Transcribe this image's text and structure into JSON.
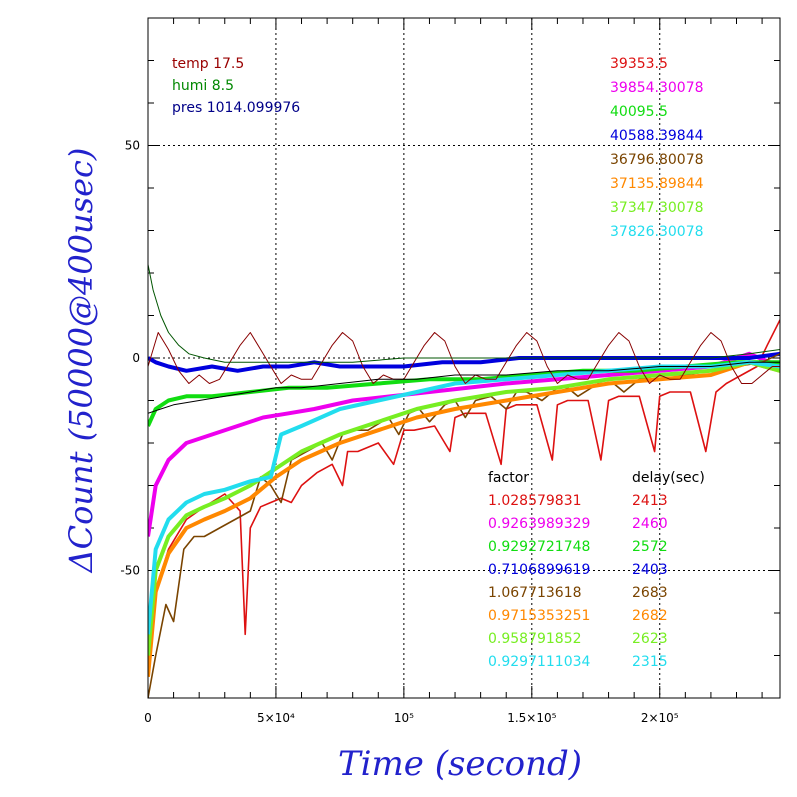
{
  "chart_data": {
    "type": "line",
    "xlabel": "Time (second)",
    "ylabel": "ΔCount (50000@400usec)",
    "xlim": [
      0,
      247000
    ],
    "ylim": [
      -80,
      80
    ],
    "x_ticks": [
      {
        "value": 0,
        "label": "0"
      },
      {
        "value": 50000,
        "label": "5×10⁴"
      },
      {
        "value": 100000,
        "label": "10⁵"
      },
      {
        "value": 150000,
        "label": "1.5×10⁵"
      },
      {
        "value": 200000,
        "label": "2×10⁵"
      }
    ],
    "y_ticks": [
      {
        "value": 50,
        "label": "50"
      },
      {
        "value": 0,
        "label": "0"
      },
      {
        "value": -50,
        "label": "-50"
      }
    ],
    "grid": true,
    "env_labels": [
      {
        "text": "temp 17.5",
        "color": "#990000"
      },
      {
        "text": "humi 8.5",
        "color": "#008800"
      },
      {
        "text": "pres 1014.099976",
        "color": "#000088"
      }
    ],
    "channel_labels": [
      {
        "text": "39353.5",
        "color": "#dd1111"
      },
      {
        "text": "39854.30078",
        "color": "#ee00ee"
      },
      {
        "text": "40095.5",
        "color": "#11dd11"
      },
      {
        "text": "40588.39844",
        "color": "#0000dd"
      },
      {
        "text": "36796.80078",
        "color": "#7a4400"
      },
      {
        "text": "37135.89844",
        "color": "#ff8800"
      },
      {
        "text": "37347.30078",
        "color": "#77ee22"
      },
      {
        "text": "37826.30078",
        "color": "#22ddee"
      }
    ],
    "table_headers": [
      "factor",
      "delay(sec)"
    ],
    "table_rows": [
      {
        "factor": "1.028579831",
        "delay": "2413",
        "color": "#dd1111"
      },
      {
        "factor": "0.9263989329",
        "delay": "2460",
        "color": "#ee00ee"
      },
      {
        "factor": "0.9292721748",
        "delay": "2572",
        "color": "#11dd11"
      },
      {
        "factor": "0.7106899619",
        "delay": "2403",
        "color": "#0000dd"
      },
      {
        "factor": "1.067713618",
        "delay": "2683",
        "color": "#7a4400"
      },
      {
        "factor": "0.9715353251",
        "delay": "2682",
        "color": "#ff8800"
      },
      {
        "factor": "0.958791852",
        "delay": "2623",
        "color": "#77ee22"
      },
      {
        "factor": "0.9297111034",
        "delay": "2315",
        "color": "#22ddee"
      }
    ],
    "series": [
      {
        "color": "#dd1111",
        "x": [
          0,
          3000,
          8000,
          15000,
          22000,
          30000,
          36000,
          38000,
          40000,
          44000,
          48000,
          52000,
          56000,
          60000,
          66000,
          72000,
          76000,
          78000,
          82000,
          90000,
          96000,
          100000,
          104000,
          112000,
          118000,
          120000,
          124000,
          132000,
          138000,
          140000,
          144000,
          152000,
          158000,
          160000,
          164000,
          172000,
          177000,
          180000,
          184000,
          192000,
          198000,
          200000,
          204000,
          212000,
          218000,
          222000,
          226000,
          232000,
          238000,
          242000,
          247000
        ],
        "y": [
          -70,
          -55,
          -45,
          -38,
          -35,
          -32,
          -36,
          -65,
          -40,
          -35,
          -34,
          -33,
          -34,
          -30,
          -27,
          -25,
          -30,
          -22,
          -22,
          -20,
          -25,
          -17,
          -17,
          -16,
          -22,
          -14,
          -13,
          -13,
          -25,
          -12,
          -11,
          -11,
          -24,
          -11,
          -10,
          -10,
          -24,
          -10,
          -9,
          -9,
          -22,
          -9,
          -8,
          -8,
          -22,
          -8,
          -6,
          -4,
          -2,
          3,
          9
        ]
      },
      {
        "color": "#ee00ee",
        "x": [
          0,
          3000,
          8000,
          15000,
          25000,
          35000,
          45000,
          55000,
          65000,
          80000,
          95000,
          110000,
          125000,
          140000,
          160000,
          180000,
          200000,
          220000,
          235000,
          247000
        ],
        "y": [
          -42,
          -30,
          -24,
          -20,
          -18,
          -16,
          -14,
          -13,
          -12,
          -10,
          -9,
          -8,
          -7,
          -6,
          -5,
          -4,
          -3,
          -2,
          1,
          -2
        ]
      },
      {
        "color": "#11dd11",
        "x": [
          0,
          3000,
          8000,
          15000,
          25000,
          40000,
          55000,
          70000,
          90000,
          110000,
          130000,
          150000,
          170000,
          190000,
          210000,
          230000,
          240000,
          247000
        ],
        "y": [
          -16,
          -12,
          -10,
          -9,
          -9,
          -8,
          -7,
          -7,
          -6,
          -5,
          -5,
          -4,
          -3,
          -3,
          -2,
          -1,
          -1,
          -1
        ]
      },
      {
        "color": "#0000dd",
        "x": [
          0,
          3000,
          8000,
          15000,
          25000,
          35000,
          45000,
          55000,
          65000,
          75000,
          85000,
          100000,
          115000,
          130000,
          145000,
          160000,
          175000,
          190000,
          205000,
          220000,
          235000,
          247000
        ],
        "y": [
          0,
          -1,
          -2,
          -3,
          -2,
          -3,
          -2,
          -2,
          -1,
          -2,
          -2,
          -2,
          -1,
          -1,
          0,
          0,
          0,
          0,
          0,
          0,
          0,
          1
        ]
      },
      {
        "color": "#7a4400",
        "x": [
          0,
          3000,
          7000,
          10000,
          14000,
          18000,
          22000,
          28000,
          34000,
          40000,
          44000,
          48000,
          52000,
          56000,
          62000,
          68000,
          72000,
          76000,
          80000,
          86000,
          94000,
          98000,
          102000,
          106000,
          110000,
          116000,
          120000,
          124000,
          128000,
          134000,
          140000,
          144000,
          148000,
          154000,
          160000,
          164000,
          168000,
          176000,
          182000,
          186000,
          192000,
          200000,
          210000,
          220000,
          230000,
          240000,
          247000
        ],
        "y": [
          -80,
          -70,
          -58,
          -62,
          -45,
          -42,
          -42,
          -40,
          -38,
          -36,
          -28,
          -30,
          -34,
          -24,
          -22,
          -20,
          -24,
          -18,
          -17,
          -17,
          -14,
          -18,
          -13,
          -12,
          -15,
          -11,
          -10,
          -14,
          -10,
          -9,
          -12,
          -8,
          -8,
          -10,
          -7,
          -7,
          -9,
          -6,
          -6,
          -8,
          -5,
          -4,
          -4,
          -3,
          -2,
          -1,
          1
        ]
      },
      {
        "color": "#ff8800",
        "x": [
          0,
          3000,
          8000,
          15000,
          22000,
          30000,
          40000,
          50000,
          60000,
          75000,
          90000,
          105000,
          120000,
          140000,
          160000,
          180000,
          200000,
          220000,
          235000,
          247000
        ],
        "y": [
          -75,
          -55,
          -46,
          -40,
          -38,
          -36,
          -33,
          -28,
          -24,
          -20,
          -17,
          -14,
          -12,
          -10,
          -8,
          -6,
          -5,
          -4,
          -1,
          -3
        ]
      },
      {
        "color": "#77ee22",
        "x": [
          0,
          3000,
          8000,
          15000,
          22000,
          30000,
          40000,
          50000,
          60000,
          75000,
          90000,
          105000,
          120000,
          140000,
          160000,
          180000,
          200000,
          220000,
          235000,
          247000
        ],
        "y": [
          -70,
          -50,
          -42,
          -37,
          -35,
          -33,
          -30,
          -26,
          -22,
          -18,
          -15,
          -12,
          -10,
          -8,
          -7,
          -5,
          -4,
          -3,
          -1,
          -3
        ]
      },
      {
        "color": "#22ddee",
        "x": [
          0,
          3000,
          8000,
          15000,
          22000,
          30000,
          40000,
          48000,
          52000,
          60000,
          75000,
          90000,
          105000,
          120000,
          140000,
          160000,
          180000,
          200000,
          220000,
          235000,
          247000
        ],
        "y": [
          -65,
          -45,
          -38,
          -34,
          -32,
          -31,
          -29,
          -28,
          -18,
          -16,
          -12,
          -10,
          -8,
          -6,
          -5,
          -4,
          -3,
          -2,
          -2,
          -1,
          -2
        ]
      },
      {
        "color": "#880000",
        "x": [
          0,
          4000,
          8000,
          12000,
          16000,
          20000,
          24000,
          28000,
          32000,
          36000,
          40000,
          44000,
          48000,
          52000,
          56000,
          60000,
          64000,
          68000,
          72000,
          76000,
          80000,
          84000,
          88000,
          92000,
          96000,
          100000,
          104000,
          108000,
          112000,
          116000,
          120000,
          124000,
          128000,
          132000,
          136000,
          140000,
          144000,
          148000,
          152000,
          156000,
          160000,
          164000,
          168000,
          172000,
          176000,
          180000,
          184000,
          188000,
          192000,
          196000,
          200000,
          204000,
          208000,
          212000,
          216000,
          220000,
          224000,
          228000,
          232000,
          236000,
          240000,
          244000,
          247000
        ],
        "y": [
          -2,
          6,
          2,
          -3,
          -6,
          -4,
          -6,
          -5,
          -1,
          3,
          6,
          2,
          -2,
          -6,
          -4,
          -5,
          -5,
          -1,
          3,
          6,
          4,
          -2,
          -6,
          -4,
          -5,
          -5,
          -1,
          3,
          6,
          4,
          -2,
          -6,
          -4,
          -5,
          -5,
          -1,
          3,
          6,
          4,
          -2,
          -6,
          -4,
          -5,
          -5,
          -1,
          3,
          6,
          4,
          -2,
          -6,
          -4,
          -5,
          -5,
          -1,
          3,
          6,
          4,
          -2,
          -6,
          -6,
          -4,
          -2,
          -2
        ]
      },
      {
        "color": "#005500",
        "x": [
          0,
          2000,
          5000,
          8000,
          12000,
          16000,
          22000,
          30000,
          40000,
          60000,
          80000,
          100000,
          120000,
          140000,
          160000,
          180000,
          200000,
          220000,
          235000,
          247000
        ],
        "y": [
          22,
          16,
          10,
          6,
          3,
          1,
          0,
          -1,
          -1,
          -1,
          -1,
          0,
          0,
          0,
          0,
          0,
          0,
          0,
          1,
          2
        ]
      },
      {
        "color": "#000000",
        "x": [
          0,
          5000,
          10000,
          20000,
          30000,
          40000,
          50000,
          60000,
          75000,
          90000,
          105000,
          120000,
          140000,
          160000,
          180000,
          200000,
          220000,
          235000,
          247000
        ],
        "y": [
          -13,
          -12,
          -11,
          -10,
          -9,
          -8,
          -7,
          -7,
          -6,
          -5,
          -5,
          -4,
          -4,
          -3,
          -3,
          -2,
          -2,
          -1,
          -1
        ]
      }
    ]
  }
}
